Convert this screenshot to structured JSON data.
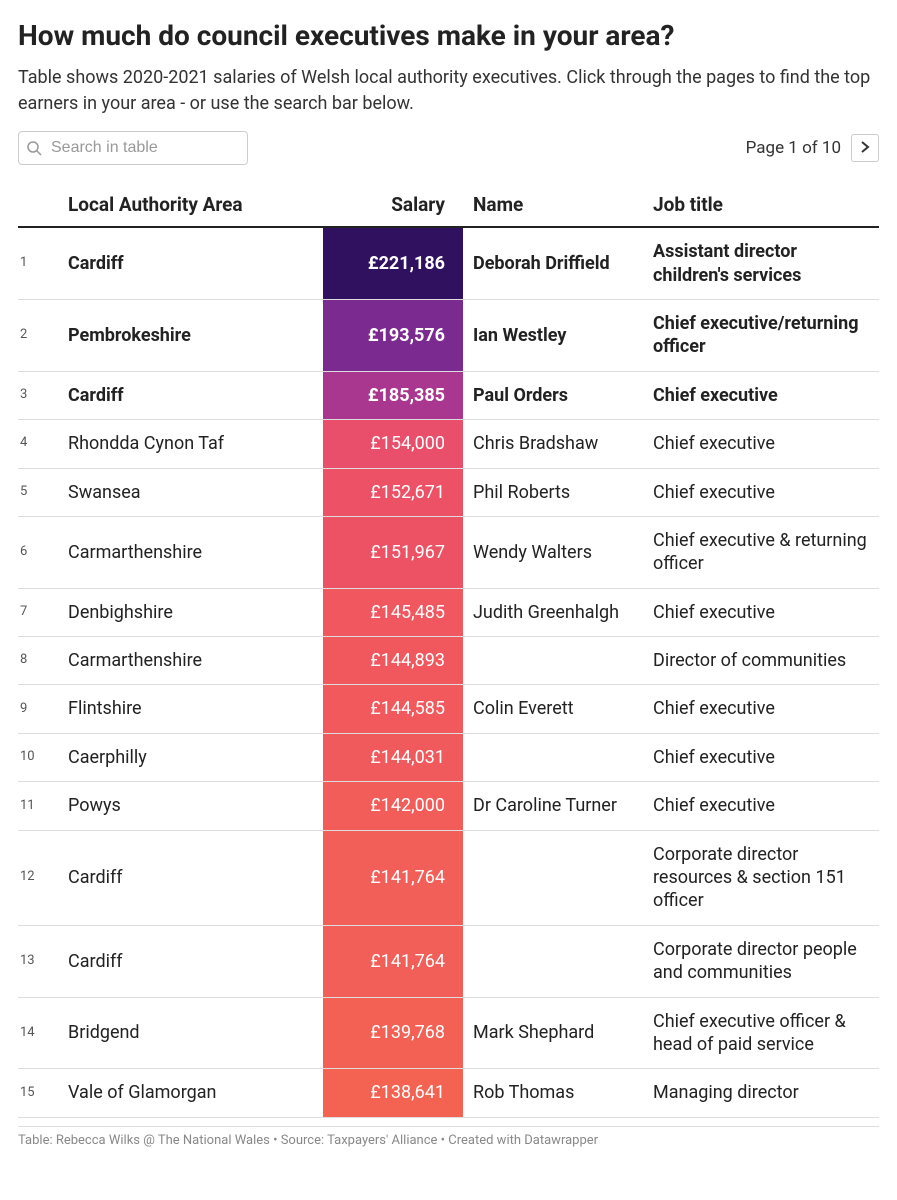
{
  "title": "How much do council executives make in your area?",
  "subtitle": "Table shows 2020-2021 salaries of Welsh local authority executives. Click through the pages to find the top earners in your area - or use the search bar below.",
  "search": {
    "placeholder": "Search in table"
  },
  "pager": {
    "label": "Page 1 of 10"
  },
  "table": {
    "headers": {
      "area": "Local Authority Area",
      "salary": "Salary",
      "name": "Name",
      "job": "Job title"
    },
    "bold_top_n": 3,
    "salary_color_scale": {
      "221186": "#2f1160",
      "193576": "#7b2b8f",
      "185385": "#a93790",
      "154000": "#e94f6a",
      "152671": "#ec5166",
      "151967": "#ed5264",
      "145485": "#f0575f",
      "144893": "#f0585e",
      "144585": "#f1595d",
      "144031": "#f15a5c",
      "142000": "#f25d59",
      "141764": "#f25e58",
      "139768": "#f36154",
      "138641": "#f46351"
    },
    "rows": [
      {
        "rank": "1",
        "area": "Cardiff",
        "salary": "£221,186",
        "salary_raw": 221186,
        "name": "Deborah Driffield",
        "job": "Assistant director children's services"
      },
      {
        "rank": "2",
        "area": "Pembrokeshire",
        "salary": "£193,576",
        "salary_raw": 193576,
        "name": "Ian Westley",
        "job": "Chief executive/returning officer"
      },
      {
        "rank": "3",
        "area": "Cardiff",
        "salary": "£185,385",
        "salary_raw": 185385,
        "name": "Paul Orders",
        "job": "Chief executive"
      },
      {
        "rank": "4",
        "area": "Rhondda Cynon Taf",
        "salary": "£154,000",
        "salary_raw": 154000,
        "name": "Chris Bradshaw",
        "job": "Chief executive"
      },
      {
        "rank": "5",
        "area": "Swansea",
        "salary": "£152,671",
        "salary_raw": 152671,
        "name": "Phil Roberts",
        "job": "Chief executive"
      },
      {
        "rank": "6",
        "area": "Carmarthenshire",
        "salary": "£151,967",
        "salary_raw": 151967,
        "name": "Wendy Walters",
        "job": "Chief executive & returning officer"
      },
      {
        "rank": "7",
        "area": "Denbighshire",
        "salary": "£145,485",
        "salary_raw": 145485,
        "name": "Judith Greenhalgh",
        "job": "Chief executive"
      },
      {
        "rank": "8",
        "area": "Carmarthenshire",
        "salary": "£144,893",
        "salary_raw": 144893,
        "name": "",
        "job": "Director of communities"
      },
      {
        "rank": "9",
        "area": "Flintshire",
        "salary": "£144,585",
        "salary_raw": 144585,
        "name": "Colin Everett",
        "job": "Chief executive"
      },
      {
        "rank": "10",
        "area": "Caerphilly",
        "salary": "£144,031",
        "salary_raw": 144031,
        "name": "",
        "job": "Chief executive"
      },
      {
        "rank": "11",
        "area": "Powys",
        "salary": "£142,000",
        "salary_raw": 142000,
        "name": "Dr Caroline Turner",
        "job": "Chief executive"
      },
      {
        "rank": "12",
        "area": "Cardiff",
        "salary": "£141,764",
        "salary_raw": 141764,
        "name": "",
        "job": "Corporate director resources & section 151 officer"
      },
      {
        "rank": "13",
        "area": "Cardiff",
        "salary": "£141,764",
        "salary_raw": 141764,
        "name": "",
        "job": "Corporate director people and communities"
      },
      {
        "rank": "14",
        "area": "Bridgend",
        "salary": "£139,768",
        "salary_raw": 139768,
        "name": "Mark Shephard",
        "job": "Chief executive officer & head of paid service"
      },
      {
        "rank": "15",
        "area": "Vale of Glamorgan",
        "salary": "£138,641",
        "salary_raw": 138641,
        "name": "Rob Thomas",
        "job": "Managing director"
      }
    ]
  },
  "footer": "Table: Rebecca Wilks @ The National Wales • Source: Taxpayers' Alliance • Created with Datawrapper"
}
